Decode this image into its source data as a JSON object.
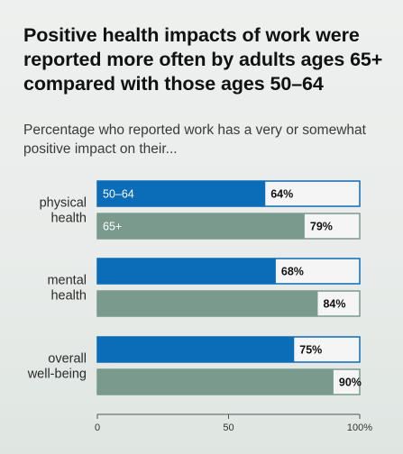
{
  "chart_data": {
    "type": "bar",
    "orientation": "horizontal",
    "title": "Positive health impacts of work were reported more often by adults ages 65+ compared with those ages 50–64",
    "subtitle": "Percentage who reported work has a very or somewhat positive impact on their...",
    "categories": [
      [
        "physical",
        "health"
      ],
      [
        "mental",
        "health"
      ],
      [
        "overall",
        "well-being"
      ]
    ],
    "series": [
      {
        "name": "50–64",
        "values": [
          64,
          68,
          75
        ],
        "color": "#0b6cb8"
      },
      {
        "name": "65+",
        "values": [
          79,
          84,
          90
        ],
        "color": "#7a9a8e"
      }
    ],
    "value_suffix": "%",
    "xlim": [
      0,
      100
    ],
    "x_ticks": [
      {
        "value": 0,
        "label": "0"
      },
      {
        "value": 50,
        "label": "50"
      },
      {
        "value": 100,
        "label": "100%"
      }
    ],
    "legend": "inline-on-first-category-bars",
    "grid": false,
    "track_color": "#f4f5f4"
  }
}
